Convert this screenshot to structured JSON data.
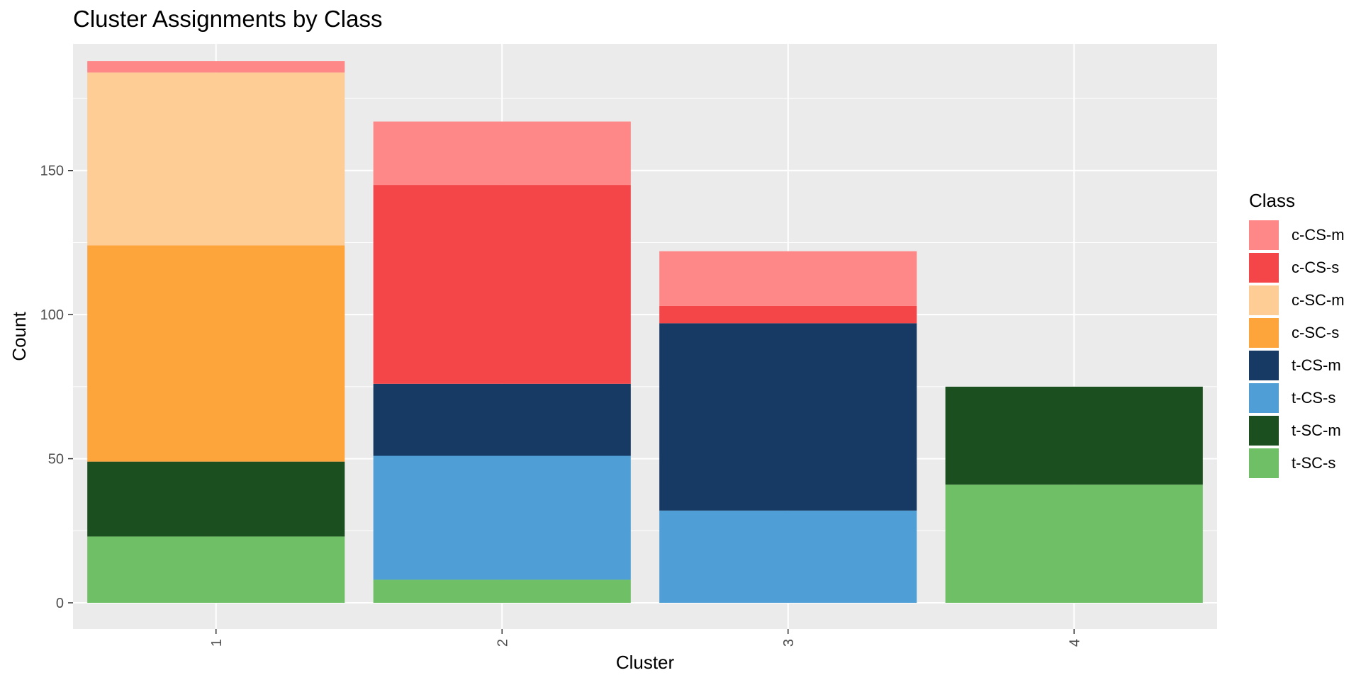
{
  "chart_data": {
    "type": "bar",
    "stacked": true,
    "title": "Cluster Assignments by Class",
    "xlabel": "Cluster",
    "ylabel": "Count",
    "categories": [
      "1",
      "2",
      "3",
      "4"
    ],
    "ylim": [
      0,
      195
    ],
    "yticks": [
      0,
      50,
      100,
      150
    ],
    "grid": true,
    "legend_title": "Class",
    "legend_position": "right",
    "series": [
      {
        "name": "t-SC-s",
        "color": "#6ebf65",
        "values": [
          23,
          8,
          0,
          41
        ]
      },
      {
        "name": "t-SC-m",
        "color": "#1b4f1f",
        "values": [
          26,
          0,
          0,
          34
        ]
      },
      {
        "name": "t-CS-s",
        "color": "#4f9ed6",
        "values": [
          0,
          43,
          32,
          0
        ]
      },
      {
        "name": "t-CS-m",
        "color": "#163a63",
        "values": [
          0,
          25,
          65,
          0
        ]
      },
      {
        "name": "c-SC-s",
        "color": "#fda43b",
        "values": [
          75,
          0,
          0,
          0
        ]
      },
      {
        "name": "c-SC-m",
        "color": "#fecd95",
        "values": [
          60,
          0,
          0,
          0
        ]
      },
      {
        "name": "c-CS-s",
        "color": "#f44648",
        "values": [
          0,
          69,
          6,
          0
        ]
      },
      {
        "name": "c-CS-m",
        "color": "#fe8787",
        "values": [
          4,
          22,
          19,
          0
        ]
      }
    ],
    "legend_order": [
      "c-CS-m",
      "c-CS-s",
      "c-SC-m",
      "c-SC-s",
      "t-CS-m",
      "t-CS-s",
      "t-SC-m",
      "t-SC-s"
    ]
  }
}
